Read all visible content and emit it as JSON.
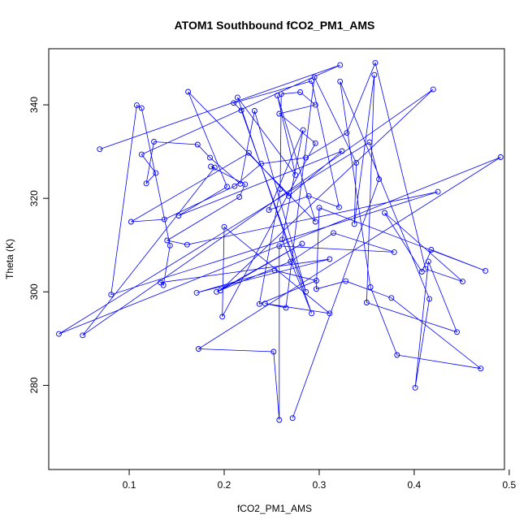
{
  "chart_data": {
    "type": "line",
    "title": "ATOM1 Southbound fCO2_PM1_AMS",
    "xlabel": "fCO2_PM1_AMS",
    "ylabel": "Theta (K)",
    "xlim": [
      0.0153,
      0.495
    ],
    "ylim": [
      262,
      352
    ],
    "xticks": [
      "0.1",
      "0.2",
      "0.3",
      "0.4",
      "0.5"
    ],
    "yticks": [
      "280",
      "300",
      "320",
      "340"
    ],
    "grid": false,
    "line_color": "#0000ff",
    "marker": "open-circle",
    "series": [
      {
        "x": [
          0.069,
          0.322,
          0.113,
          0.128,
          0.118,
          0.126,
          0.172,
          0.185,
          0.217,
          0.232,
          0.286,
          0.218,
          0.21,
          0.292,
          0.321,
          0.289,
          0.247,
          0.283,
          0.261,
          0.292,
          0.214,
          0.275,
          0.256,
          0.296,
          0.162,
          0.203,
          0.152,
          0.324,
          0.268,
          0.226,
          0.102,
          0.137,
          0.211,
          0.239,
          0.286,
          0.329,
          0.359,
          0.412,
          0.451,
          0.369,
          0.408,
          0.418,
          0.475,
          0.3,
          0.297,
          0.328,
          0.376,
          0.47,
          0.382,
          0.354,
          0.322,
          0.416,
          0.401,
          0.415,
          0.445,
          0.35,
          0.358,
          0.337,
          0.339,
          0.295,
          0.265,
          0.243,
          0.311,
          0.2,
          0.198,
          0.296,
          0.258,
          0.296,
          0.28,
          0.26,
          0.259,
          0.237,
          0.297,
          0.253,
          0.171,
          0.311,
          0.133,
          0.136,
          0.143,
          0.113,
          0.108,
          0.081,
          0.425,
          0.161,
          0.14,
          0.216,
          0.222,
          0.186,
          0.19,
          0.051,
          0.42,
          0.196,
          0.282,
          0.192,
          0.27,
          0.315,
          0.379,
          0.258,
          0.258,
          0.252,
          0.173,
          0.491,
          0.026,
          0.353,
          0.363,
          0.272
        ],
        "y": [
          330.5,
          348.5,
          329.4,
          325.4,
          323.2,
          332.1,
          331.5,
          328.7,
          323.1,
          338.7,
          300.0,
          338.8,
          340.4,
          345.1,
          318.1,
          320.5,
          317.5,
          334.6,
          311.2,
          295.4,
          341.6,
          325.0,
          342.0,
          315.0,
          342.8,
          322.5,
          316.3,
          330.1,
          320.5,
          329.7,
          315.0,
          315.5,
          322.6,
          327.4,
          328.7,
          334.0,
          349.0,
          304.9,
          302.2,
          316.9,
          304.3,
          309.0,
          304.5,
          318.0,
          300.6,
          302.3,
          298.7,
          283.6,
          286.5,
          301.0,
          345.0,
          298.5,
          279.5,
          306.5,
          291.4,
          297.7,
          346.4,
          314.5,
          327.6,
          345.9,
          296.6,
          297.5,
          295.4,
          313.9,
          294.7,
          331.8,
          338.1,
          340.0,
          342.7,
          342.3,
          322.0,
          297.4,
          302.4,
          304.6,
          299.8,
          307.0,
          302.0,
          301.4,
          309.9,
          339.3,
          339.9,
          299.4,
          321.4,
          310.1,
          311.0,
          320.3,
          323.0,
          326.8,
          326.6,
          290.7,
          343.3,
          300.3,
          310.3,
          300.0,
          306.5,
          312.6,
          308.5,
          309.8,
          272.6,
          287.2,
          287.8,
          328.8,
          291.0,
          332.0,
          324.1,
          273.0
        ]
      }
    ]
  }
}
